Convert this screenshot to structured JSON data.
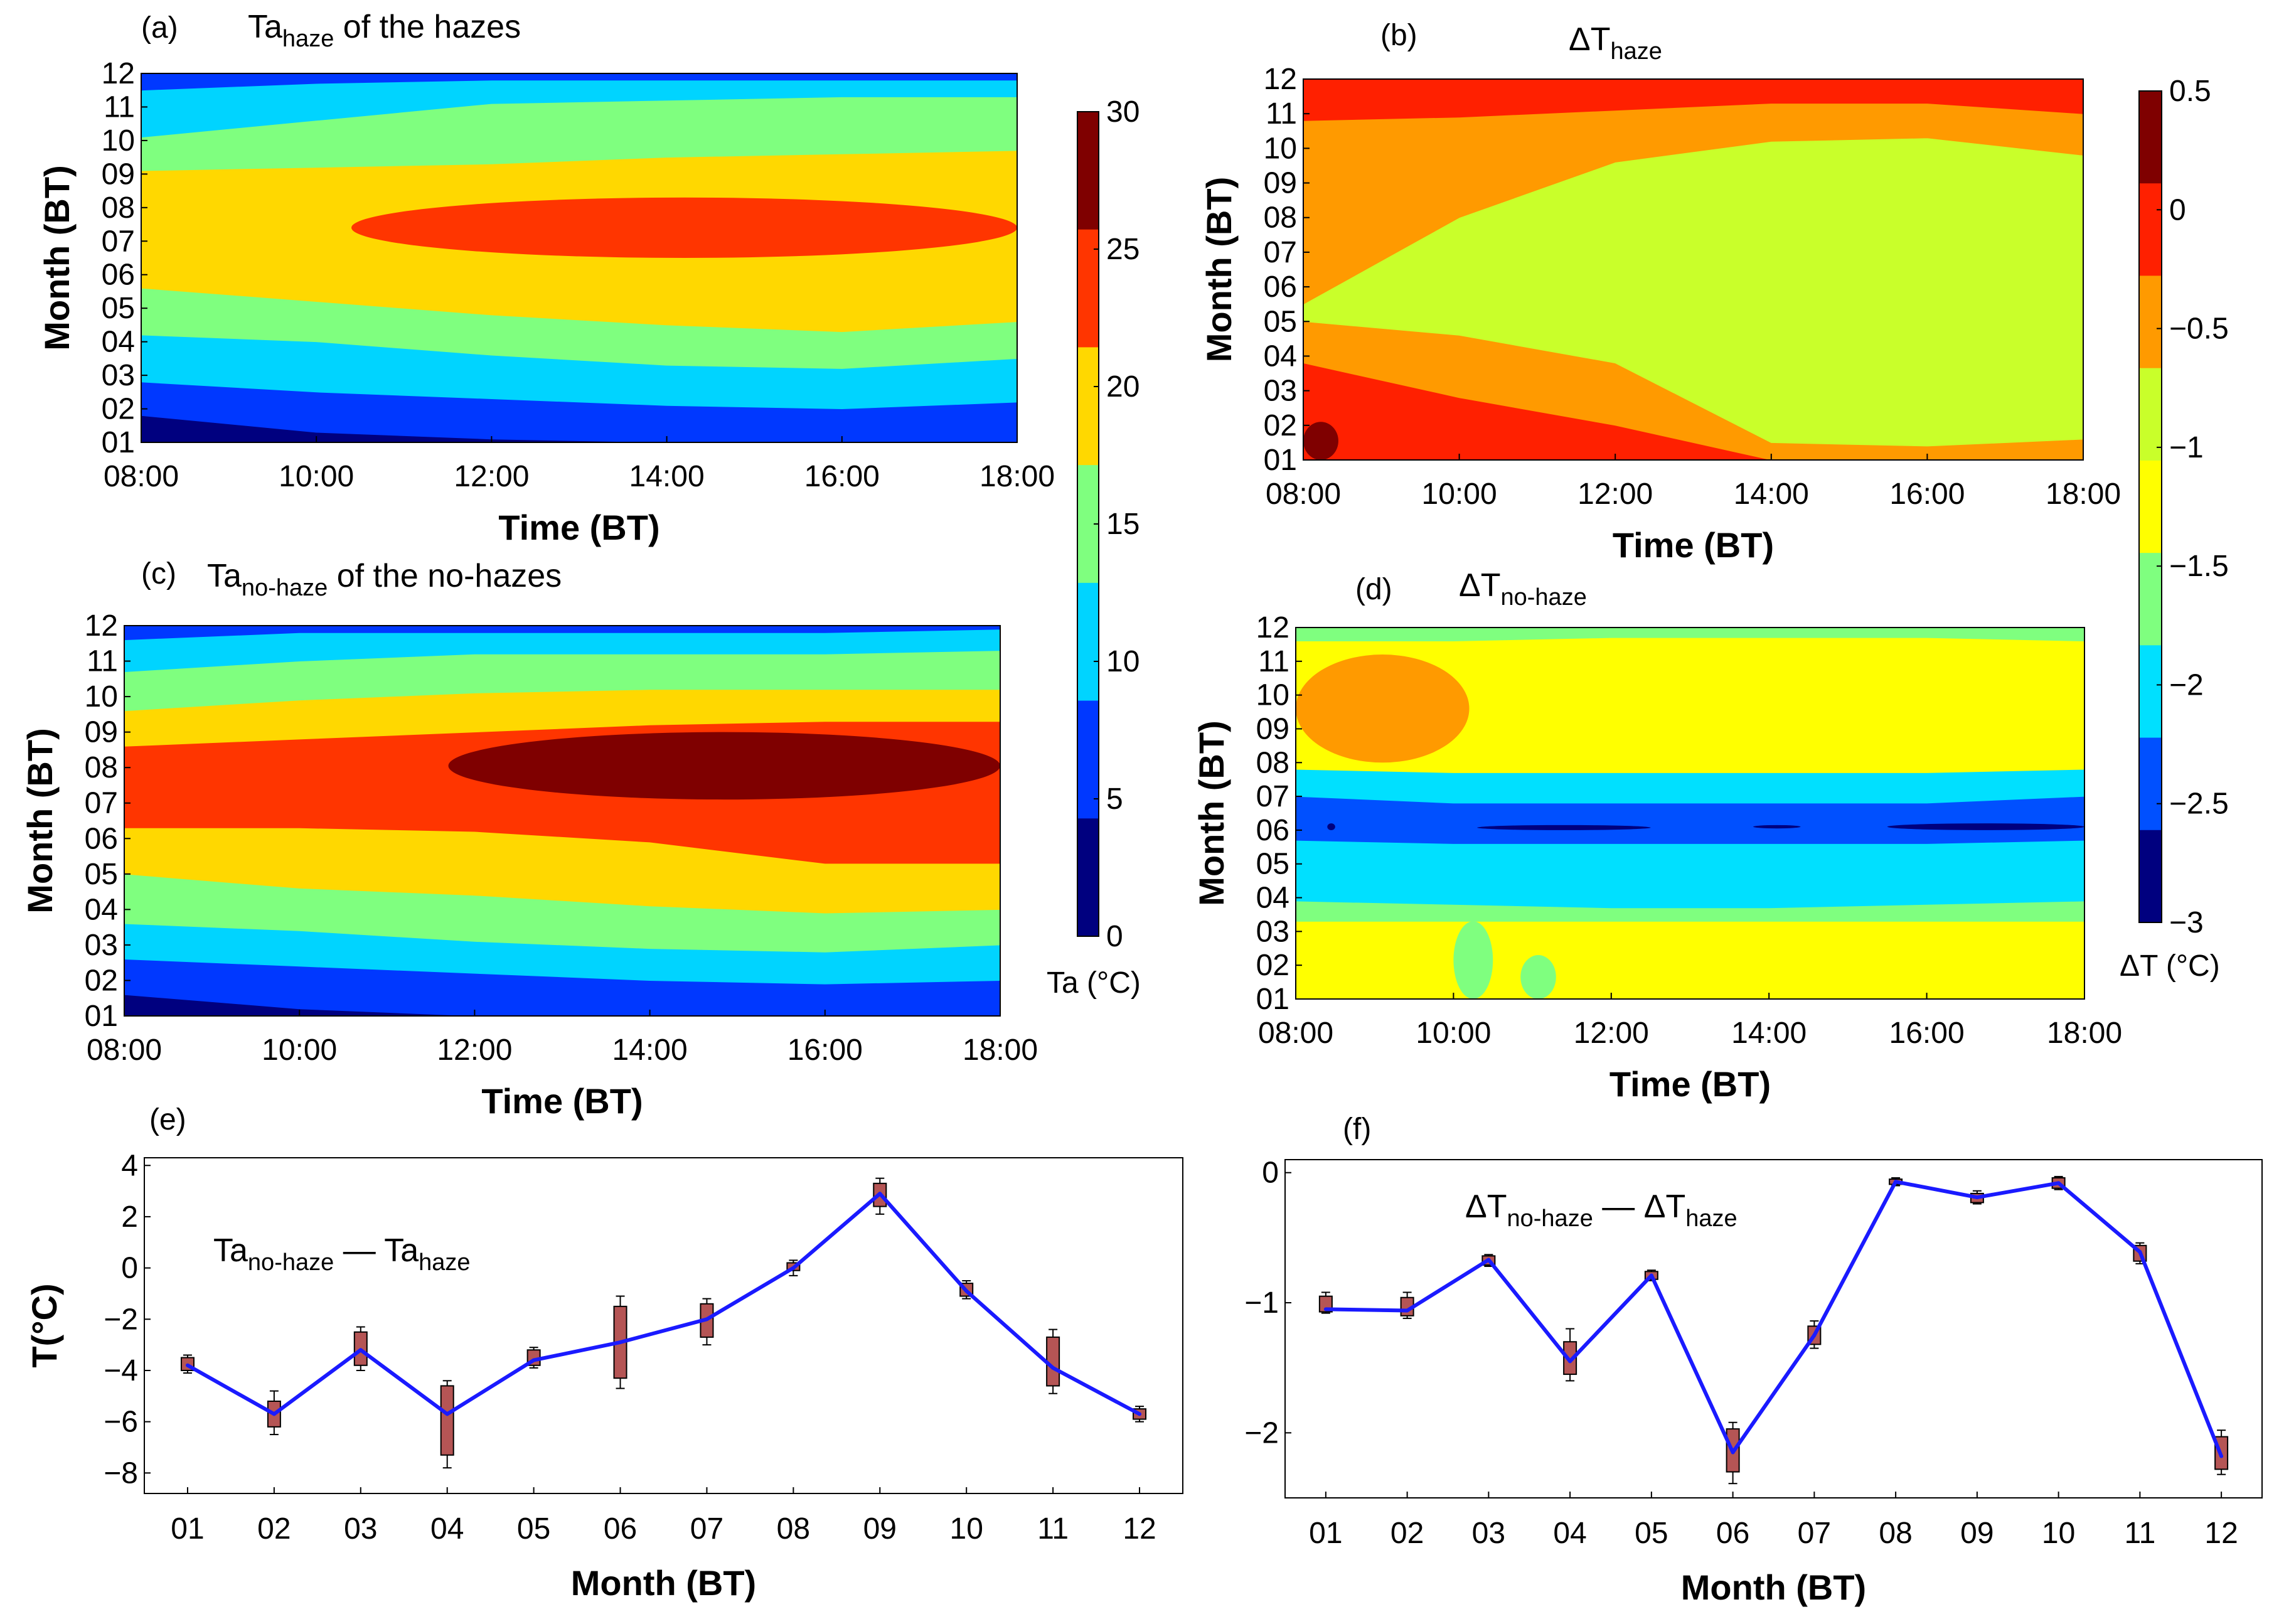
{
  "colors": {
    "map_levels": [
      "#00007f",
      "#0038ff",
      "#00d4ff",
      "#7fff7f",
      "#ffd800",
      "#ff3500",
      "#7f0000"
    ],
    "dt_levels": [
      "#00007f",
      "#0050ff",
      "#00e0ff",
      "#7fff7f",
      "#ffff00",
      "#c9ff2a",
      "#ff9a00",
      "#ff2000",
      "#7f0000"
    ],
    "line": "#1a1aff",
    "box": "#b55555"
  },
  "chart_data": [
    {
      "id": "a",
      "type": "heatmap",
      "panel_label": "(a)",
      "title": {
        "main": "Ta",
        "sub": "haze",
        "rest": " of the hazes"
      },
      "xlabel": "Time (BT)",
      "ylabel": "Month (BT)",
      "xticks": [
        "08:00",
        "10:00",
        "12:00",
        "14:00",
        "16:00",
        "18:00"
      ],
      "yticks": [
        "01",
        "02",
        "03",
        "04",
        "05",
        "06",
        "07",
        "08",
        "09",
        "10",
        "11",
        "12"
      ],
      "xlim": [
        "08:00",
        "18:00"
      ],
      "ylim": [
        1,
        12
      ],
      "bands": [
        {
          "level": 0,
          "lo": [
            1.0,
            1.0,
            1.0,
            1.0,
            1.0,
            1.0
          ],
          "hi": [
            1.8,
            1.3,
            1.1,
            1.0,
            1.0,
            1.0
          ]
        },
        {
          "level": 1,
          "lo": [
            1.8,
            1.3,
            1.1,
            1.0,
            1.0,
            1.0
          ],
          "hi": [
            2.8,
            2.5,
            2.3,
            2.1,
            2.0,
            2.2
          ]
        },
        {
          "level": 2,
          "lo": [
            2.8,
            2.5,
            2.3,
            2.1,
            2.0,
            2.2
          ],
          "hi": [
            4.2,
            4.0,
            3.6,
            3.3,
            3.2,
            3.5
          ]
        },
        {
          "level": 3,
          "lo": [
            4.2,
            4.0,
            3.6,
            3.3,
            3.2,
            3.5
          ],
          "hi": [
            5.6,
            5.2,
            4.8,
            4.5,
            4.3,
            4.6
          ]
        },
        {
          "level": 4,
          "lo": [
            5.6,
            5.2,
            4.8,
            4.5,
            4.3,
            4.6
          ],
          "hi": [
            9.1,
            9.2,
            9.3,
            9.5,
            9.6,
            9.7
          ]
        },
        {
          "level": 3,
          "lo": [
            9.1,
            9.2,
            9.3,
            9.5,
            9.6,
            9.7
          ],
          "hi": [
            10.1,
            10.6,
            11.1,
            11.2,
            11.3,
            11.3
          ]
        },
        {
          "level": 2,
          "lo": [
            10.1,
            10.6,
            11.1,
            11.2,
            11.3,
            11.3
          ],
          "hi": [
            11.5,
            11.7,
            11.8,
            11.8,
            11.8,
            11.8
          ]
        },
        {
          "level": 1,
          "lo": [
            11.5,
            11.7,
            11.8,
            11.8,
            11.8,
            11.8
          ],
          "hi": [
            12,
            12,
            12,
            12,
            12,
            12
          ]
        }
      ],
      "patches": [
        {
          "level": 5,
          "x0": 10.4,
          "x1": 18.0,
          "y0": 6.5,
          "y1": 8.3
        }
      ]
    },
    {
      "id": "b",
      "type": "heatmap",
      "panel_label": "(b)",
      "title": {
        "main": "ΔT",
        "sub": "haze",
        "rest": ""
      },
      "xlabel": "Time (BT)",
      "ylabel": "Month (BT)",
      "xticks": [
        "08:00",
        "10:00",
        "12:00",
        "14:00",
        "16:00",
        "18:00"
      ],
      "yticks": [
        "01",
        "02",
        "03",
        "04",
        "05",
        "06",
        "07",
        "08",
        "09",
        "10",
        "11",
        "12"
      ],
      "xlim": [
        "08:00",
        "18:00"
      ],
      "ylim": [
        1,
        12
      ],
      "bands": [
        {
          "level": 7,
          "lo": [
            1.0,
            1.0,
            1.0,
            1.0,
            1.0,
            1.0
          ],
          "hi": [
            3.8,
            2.8,
            2.0,
            1.0,
            1.0,
            1.0
          ]
        },
        {
          "level": 6,
          "lo": [
            3.8,
            2.8,
            2.0,
            1.0,
            1.0,
            1.0
          ],
          "hi": [
            5.0,
            4.6,
            3.8,
            1.5,
            1.4,
            1.6
          ]
        },
        {
          "level": 5,
          "lo": [
            5.0,
            4.6,
            3.8,
            1.5,
            1.4,
            1.6
          ],
          "hi": [
            5.5,
            8.0,
            9.6,
            10.2,
            10.3,
            9.8
          ]
        },
        {
          "level": 6,
          "lo": [
            5.5,
            8.0,
            9.6,
            10.2,
            10.3,
            9.8
          ],
          "hi": [
            10.8,
            10.9,
            11.1,
            11.3,
            11.3,
            11.0
          ]
        },
        {
          "level": 7,
          "lo": [
            10.8,
            10.9,
            11.1,
            11.3,
            11.3,
            11.0
          ],
          "hi": [
            12,
            12,
            12,
            12,
            12,
            12
          ]
        }
      ],
      "patches": [
        {
          "level": 8,
          "x0": 8.0,
          "x1": 8.45,
          "y0": 1.0,
          "y1": 2.1
        }
      ]
    },
    {
      "id": "c",
      "type": "heatmap",
      "panel_label": "(c)",
      "title": {
        "main": "Ta",
        "sub": "no-haze",
        "rest": " of the  no-hazes"
      },
      "xlabel": "Time (BT)",
      "ylabel": "Month (BT)",
      "xticks": [
        "08:00",
        "10:00",
        "12:00",
        "14:00",
        "16:00",
        "18:00"
      ],
      "yticks": [
        "01",
        "02",
        "03",
        "04",
        "05",
        "06",
        "07",
        "08",
        "09",
        "10",
        "11",
        "12"
      ],
      "xlim": [
        "08:00",
        "18:00"
      ],
      "ylim": [
        1,
        12
      ],
      "bands": [
        {
          "level": 0,
          "lo": [
            1.0,
            1.0,
            1.0,
            1.0,
            1.0,
            1.0
          ],
          "hi": [
            1.6,
            1.2,
            1.0,
            1.0,
            1.0,
            1.0
          ]
        },
        {
          "level": 1,
          "lo": [
            1.6,
            1.2,
            1.0,
            1.0,
            1.0,
            1.0
          ],
          "hi": [
            2.6,
            2.4,
            2.2,
            2.0,
            1.9,
            2.0
          ]
        },
        {
          "level": 2,
          "lo": [
            2.6,
            2.4,
            2.2,
            2.0,
            1.9,
            2.0
          ],
          "hi": [
            3.6,
            3.4,
            3.1,
            2.9,
            2.8,
            3.0
          ]
        },
        {
          "level": 3,
          "lo": [
            3.6,
            3.4,
            3.1,
            2.9,
            2.8,
            3.0
          ],
          "hi": [
            5.0,
            4.6,
            4.4,
            4.1,
            3.9,
            4.0
          ]
        },
        {
          "level": 4,
          "lo": [
            5.0,
            4.6,
            4.4,
            4.1,
            3.9,
            4.0
          ],
          "hi": [
            6.3,
            6.3,
            6.2,
            5.9,
            5.3,
            5.3
          ]
        },
        {
          "level": 5,
          "lo": [
            6.3,
            6.3,
            6.2,
            5.9,
            5.3,
            5.3
          ],
          "hi": [
            8.6,
            8.8,
            9.0,
            9.2,
            9.3,
            9.3
          ]
        },
        {
          "level": 4,
          "lo": [
            8.6,
            8.8,
            9.0,
            9.2,
            9.3,
            9.3
          ],
          "hi": [
            9.6,
            9.9,
            10.1,
            10.2,
            10.2,
            10.2
          ]
        },
        {
          "level": 3,
          "lo": [
            9.6,
            9.9,
            10.1,
            10.2,
            10.2,
            10.2
          ],
          "hi": [
            10.7,
            11.0,
            11.2,
            11.2,
            11.2,
            11.3
          ]
        },
        {
          "level": 2,
          "lo": [
            10.7,
            11.0,
            11.2,
            11.2,
            11.2,
            11.3
          ],
          "hi": [
            11.6,
            11.8,
            11.8,
            11.8,
            11.8,
            11.9
          ]
        },
        {
          "level": 1,
          "lo": [
            11.6,
            11.8,
            11.8,
            11.8,
            11.8,
            11.9
          ],
          "hi": [
            12,
            12,
            12,
            12,
            12,
            12
          ]
        }
      ],
      "patches": [
        {
          "level": 6,
          "x0": 11.7,
          "x1": 18.0,
          "y0": 7.1,
          "y1": 9.0
        }
      ]
    },
    {
      "id": "d",
      "type": "heatmap",
      "panel_label": "(d)",
      "title": {
        "main": "ΔT",
        "sub": "no-haze",
        "rest": ""
      },
      "xlabel": "Time (BT)",
      "ylabel": "Month (BT)",
      "xticks": [
        "08:00",
        "10:00",
        "12:00",
        "14:00",
        "16:00",
        "18:00"
      ],
      "yticks": [
        "01",
        "02",
        "03",
        "04",
        "05",
        "06",
        "07",
        "08",
        "09",
        "10",
        "11",
        "12"
      ],
      "xlim": [
        "08:00",
        "18:00"
      ],
      "ylim": [
        1,
        12
      ],
      "bands": [
        {
          "level": 4,
          "lo": [
            1.0,
            1.0,
            1.0,
            1.0,
            1.0,
            1.0
          ],
          "hi": [
            3.3,
            3.3,
            3.3,
            3.3,
            3.3,
            3.3
          ]
        },
        {
          "level": 3,
          "lo": [
            3.3,
            3.3,
            3.3,
            3.3,
            3.3,
            3.3
          ],
          "hi": [
            3.9,
            3.8,
            3.7,
            3.7,
            3.8,
            3.9
          ]
        },
        {
          "level": 2,
          "lo": [
            3.9,
            3.8,
            3.7,
            3.7,
            3.8,
            3.9
          ],
          "hi": [
            5.7,
            5.6,
            5.6,
            5.6,
            5.6,
            5.7
          ]
        },
        {
          "level": 1,
          "lo": [
            5.7,
            5.6,
            5.6,
            5.6,
            5.6,
            5.7
          ],
          "hi": [
            7.0,
            6.8,
            6.8,
            6.8,
            6.8,
            7.0
          ]
        },
        {
          "level": 2,
          "lo": [
            7.0,
            6.8,
            6.8,
            6.8,
            6.8,
            7.0
          ],
          "hi": [
            7.8,
            7.7,
            7.7,
            7.7,
            7.7,
            7.8
          ]
        },
        {
          "level": 4,
          "lo": [
            7.8,
            7.7,
            7.7,
            7.7,
            7.7,
            7.8
          ],
          "hi": [
            11.6,
            11.6,
            11.7,
            11.7,
            11.7,
            11.6
          ]
        },
        {
          "level": 3,
          "lo": [
            11.6,
            11.6,
            11.7,
            11.7,
            11.7,
            11.6
          ],
          "hi": [
            12,
            12,
            12,
            12,
            12,
            12
          ]
        }
      ],
      "patches": [
        {
          "level": 6,
          "x0": 8.0,
          "x1": 10.2,
          "y0": 8.0,
          "y1": 11.2
        },
        {
          "level": 3,
          "x0": 10.0,
          "x1": 10.5,
          "y0": 1.0,
          "y1": 3.3
        },
        {
          "level": 3,
          "x0": 10.85,
          "x1": 11.3,
          "y0": 1.0,
          "y1": 2.3
        },
        {
          "level": 0,
          "x0": 8.4,
          "x1": 8.5,
          "y0": 6.0,
          "y1": 6.2
        },
        {
          "level": 0,
          "x0": 10.3,
          "x1": 12.5,
          "y0": 6.0,
          "y1": 6.15
        },
        {
          "level": 0,
          "x0": 13.8,
          "x1": 14.4,
          "y0": 6.05,
          "y1": 6.15
        },
        {
          "level": 0,
          "x0": 15.5,
          "x1": 18.0,
          "y0": 6.0,
          "y1": 6.2
        }
      ]
    },
    {
      "id": "e",
      "type": "line",
      "panel_label": "(e)",
      "legend": {
        "a": "Ta",
        "a_sub": "no-haze",
        "dash": " — ",
        "b": "Ta",
        "b_sub": "haze"
      },
      "xlabel": "Month (BT)",
      "ylabel": "T(°C)",
      "categories": [
        "01",
        "02",
        "03",
        "04",
        "05",
        "06",
        "07",
        "08",
        "09",
        "10",
        "11",
        "12"
      ],
      "yticks": [
        "−8",
        "−6",
        "−4",
        "−2",
        "0",
        "2",
        "4"
      ],
      "ylim": [
        -8.8,
        4.3
      ],
      "values": [
        -3.8,
        -5.7,
        -3.2,
        -5.7,
        -3.6,
        -2.9,
        -2.0,
        0.0,
        2.9,
        -0.9,
        -3.9,
        -5.7
      ],
      "box_lo": [
        -4.0,
        -6.2,
        -3.8,
        -7.3,
        -3.8,
        -4.3,
        -2.7,
        -0.1,
        2.4,
        -1.1,
        -4.6,
        -5.9
      ],
      "box_hi": [
        -3.5,
        -5.2,
        -2.5,
        -4.6,
        -3.2,
        -1.5,
        -1.4,
        0.2,
        3.3,
        -0.6,
        -2.7,
        -5.5
      ],
      "whisk_lo": [
        -4.1,
        -6.5,
        -4.0,
        -7.8,
        -3.9,
        -4.7,
        -3.0,
        -0.3,
        2.1,
        -1.2,
        -4.9,
        -6.0
      ],
      "whisk_hi": [
        -3.4,
        -4.8,
        -2.3,
        -4.4,
        -3.1,
        -1.1,
        -1.2,
        0.3,
        3.5,
        -0.5,
        -2.4,
        -5.4
      ]
    },
    {
      "id": "f",
      "type": "line",
      "panel_label": "(f)",
      "legend": {
        "a": "ΔT",
        "a_sub": "no-haze",
        "dash": " — ",
        "b": "ΔT",
        "b_sub": "haze"
      },
      "xlabel": "Month (BT)",
      "ylabel": "",
      "categories": [
        "01",
        "02",
        "03",
        "04",
        "05",
        "06",
        "07",
        "08",
        "09",
        "10",
        "11",
        "12"
      ],
      "yticks": [
        "−2",
        "−1",
        "0"
      ],
      "ylim": [
        -2.5,
        0.1
      ],
      "values": [
        -1.05,
        -1.06,
        -0.67,
        -1.45,
        -0.79,
        -2.15,
        -1.25,
        -0.07,
        -0.19,
        -0.08,
        -0.61,
        -2.18
      ],
      "box_lo": [
        -1.07,
        -1.1,
        -0.71,
        -1.55,
        -0.82,
        -2.3,
        -1.32,
        -0.09,
        -0.23,
        -0.12,
        -0.68,
        -2.28
      ],
      "box_hi": [
        -0.95,
        -0.96,
        -0.64,
        -1.3,
        -0.76,
        -1.97,
        -1.18,
        -0.05,
        -0.16,
        -0.04,
        -0.56,
        -2.03
      ],
      "whisk_lo": [
        -1.08,
        -1.12,
        -0.72,
        -1.6,
        -0.83,
        -2.39,
        -1.35,
        -0.1,
        -0.24,
        -0.13,
        -0.7,
        -2.32
      ],
      "whisk_hi": [
        -0.92,
        -0.92,
        -0.63,
        -1.2,
        -0.75,
        -1.92,
        -1.14,
        -0.04,
        -0.14,
        -0.03,
        -0.54,
        -1.98
      ]
    },
    {
      "id": "cb1",
      "type": "colorbar",
      "ticks": [
        "0",
        "5",
        "10",
        "15",
        "20",
        "25",
        "30"
      ],
      "label": "Ta (°C)"
    },
    {
      "id": "cb2",
      "type": "colorbar",
      "ticks": [
        "−3",
        "−2.5",
        "−2",
        "−1.5",
        "−1",
        "−0.5",
        "0",
        "0.5"
      ],
      "label": "ΔT (°C)"
    }
  ]
}
